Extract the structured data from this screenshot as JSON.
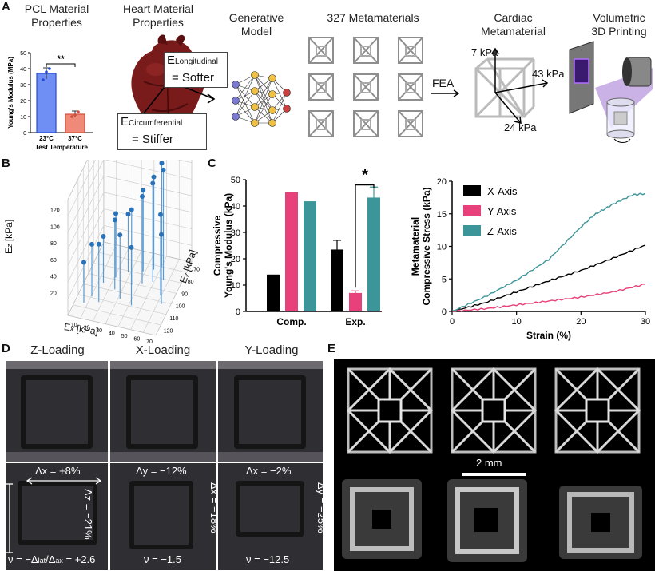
{
  "panelA": {
    "label": "A",
    "pcl_title": [
      "PCL Material",
      "Properties"
    ],
    "heart_title": [
      "Heart Material",
      "Properties"
    ],
    "gen_title": [
      "Generative",
      "Model"
    ],
    "meta_title": "327 Metamaterials",
    "cardiac_title": [
      "Cardiac",
      "Metamaterial"
    ],
    "print_title": [
      "Volumetric",
      "3D Printing"
    ],
    "fea": "FEA",
    "e_long_main": "E",
    "e_long_sub": "Longitudinal",
    "e_long_val": "= Softer",
    "e_circ_main": "E",
    "e_circ_sub": "Circumferential",
    "e_circ_val": "= Stiffer",
    "kpa_7": "7 kPa",
    "kpa_43": "43 kPa",
    "kpa_24": "24 kPa"
  },
  "pcl_chart": {
    "chart_data": {
      "type": "bar",
      "categories": [
        "23°C",
        "37°C"
      ],
      "values": [
        37,
        11.5
      ],
      "errors": [
        3.5,
        2
      ],
      "points": [
        [
          33,
          38,
          40
        ],
        [
          10,
          11,
          13
        ]
      ],
      "ylabel": "Young's Modulus (MPa)",
      "xlabel": "Test Temperature",
      "ylim": [
        0,
        50
      ],
      "yticks": [
        "0",
        "10",
        "20",
        "30",
        "40",
        "50"
      ],
      "significance": "**",
      "colors": [
        "#6f8ff5",
        "#f08a78"
      ]
    }
  },
  "panelB": {
    "label": "B",
    "zlabel_main": "E",
    "zlabel_sub": "z",
    "zlabel_unit": " [kPa]",
    "xlabel_main": "E",
    "xlabel_sub": "x",
    "xlabel_unit": " [kPa]",
    "ylabel_main": "E",
    "ylabel_sub": "y",
    "ylabel_unit": " [kPa]",
    "zticks": [
      "20",
      "40",
      "60",
      "80",
      "100",
      "120"
    ],
    "xticks": [
      "10",
      "20",
      "30",
      "40",
      "50",
      "60",
      "70"
    ],
    "yticks": [
      "70",
      "80",
      "90",
      "100",
      "110",
      "120"
    ]
  },
  "panelC": {
    "label": "C",
    "bar_chart": {
      "chart_data": {
        "type": "bar",
        "categories": [
          "Comp.",
          "Exp."
        ],
        "series": [
          {
            "name": "X-Axis",
            "values": [
              14,
              23.5
            ],
            "errors": [
              0,
              3.5
            ],
            "color": "#000000"
          },
          {
            "name": "Y-Axis",
            "values": [
              45.3,
              7
            ],
            "errors": [
              0,
              0.8
            ],
            "color": "#e8407a"
          },
          {
            "name": "Z-Axis",
            "values": [
              41.8,
              43.2
            ],
            "errors": [
              0,
              4
            ],
            "color": "#3c9699"
          }
        ],
        "ylabel": [
          "Compressive",
          "Young's Modulus (kPa)"
        ],
        "ylim": [
          0,
          50
        ],
        "yticks": [
          "0",
          "10",
          "20",
          "30",
          "40",
          "50"
        ],
        "significance": "*"
      }
    },
    "line_chart": {
      "chart_data": {
        "type": "line",
        "xlabel": "Strain (%)",
        "ylabel": [
          "Metamaterial",
          "Compressive Stress (kPa)"
        ],
        "xlim": [
          0,
          30
        ],
        "ylim": [
          0,
          20
        ],
        "xticks": [
          "0",
          "10",
          "20",
          "30"
        ],
        "yticks": [
          "0",
          "5",
          "10",
          "15",
          "20"
        ],
        "legend": [
          "X-Axis",
          "Y-Axis",
          "Z-Axis"
        ],
        "series": [
          {
            "name": "X-Axis",
            "color": "#000000",
            "x": [
              0,
              5,
              10,
              15,
              20,
              25,
              30
            ],
            "y": [
              0,
              1.3,
              3.0,
              4.7,
              6.3,
              8.2,
              10.2
            ]
          },
          {
            "name": "Y-Axis",
            "color": "#e8407a",
            "x": [
              0,
              5,
              10,
              15,
              20,
              25,
              30
            ],
            "y": [
              0,
              0.4,
              1.0,
              1.6,
              2.2,
              3.0,
              4.2
            ]
          },
          {
            "name": "Z-Axis",
            "color": "#3c9699",
            "x": [
              0,
              5,
              10,
              15,
              20,
              22,
              25,
              28,
              30
            ],
            "y": [
              0,
              2.2,
              4.8,
              8.0,
              13.0,
              14.8,
              16.5,
              17.9,
              18.1
            ]
          }
        ]
      }
    }
  },
  "panelD": {
    "label": "D",
    "titles": [
      "Z-Loading",
      "X-Loading",
      "Y-Loading"
    ],
    "lateral": [
      "Δx = +8%",
      "Δy = −12%",
      "Δx = −2%"
    ],
    "axial": [
      "Δz = −21%",
      "Δx = −18%",
      "Δy = −25%"
    ],
    "nu_prefix": "ν = −Δ",
    "nu_lat": "lat",
    "nu_slash": "/Δ",
    "nu_ax": "ax",
    "nu_val": " = +2.6",
    "nu": [
      "ν = −1.5",
      "ν = −12.5"
    ]
  },
  "panelE": {
    "label": "E",
    "scale": "2 mm"
  }
}
